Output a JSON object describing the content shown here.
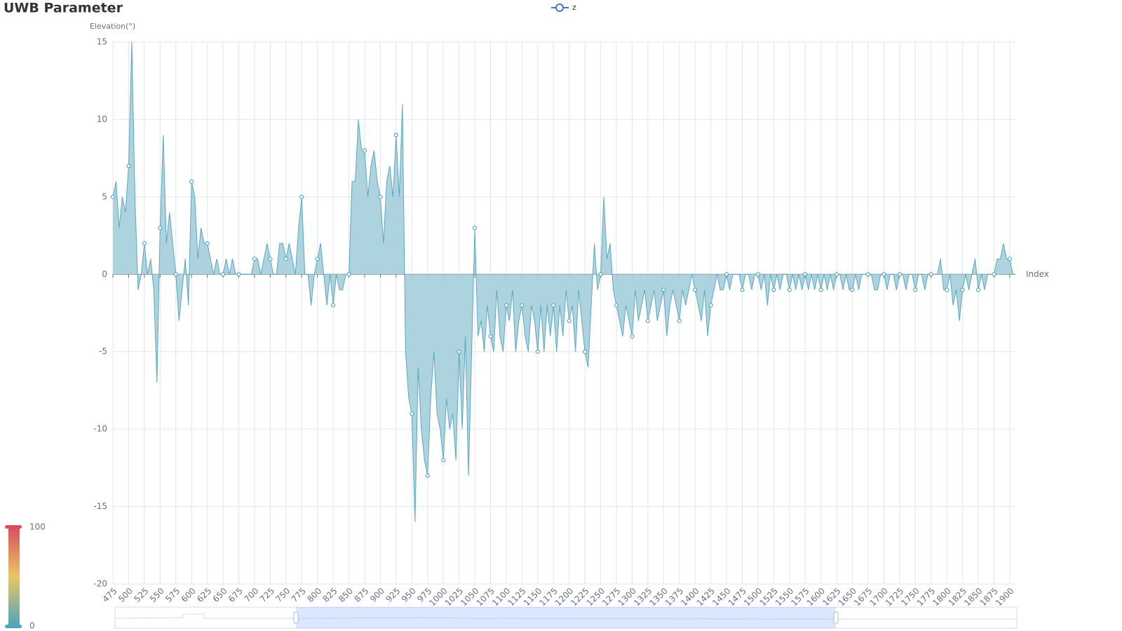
{
  "chart_data": {
    "type": "area",
    "title": "UWB Parameter",
    "y_axis_label": "Elevation(°)",
    "x_axis_label": "Index",
    "grid": true,
    "visual_map": {
      "min": 0,
      "max": 100
    },
    "xlim": [
      475,
      1909
    ],
    "xticks": [
      475,
      500,
      525,
      550,
      575,
      600,
      625,
      650,
      675,
      700,
      725,
      750,
      775,
      800,
      825,
      850,
      875,
      900,
      925,
      950,
      975,
      1000,
      1025,
      1050,
      1075,
      1100,
      1125,
      1150,
      1175,
      1200,
      1225,
      1250,
      1275,
      1300,
      1325,
      1350,
      1375,
      1400,
      1425,
      1450,
      1475,
      1500,
      1525,
      1550,
      1575,
      1600,
      1625,
      1650,
      1675,
      1700,
      1725,
      1750,
      1775,
      1800,
      1825,
      1850,
      1875,
      1900
    ],
    "ylim": [
      -20,
      15
    ],
    "yticks": [
      15,
      10,
      5,
      0,
      -5,
      -10,
      -15,
      -20
    ],
    "x": [
      475,
      480,
      485,
      490,
      495,
      500,
      505,
      510,
      515,
      520,
      525,
      530,
      535,
      540,
      545,
      550,
      555,
      560,
      565,
      570,
      575,
      580,
      585,
      590,
      595,
      600,
      605,
      610,
      615,
      620,
      625,
      630,
      635,
      640,
      645,
      650,
      655,
      660,
      665,
      670,
      675,
      680,
      685,
      690,
      695,
      700,
      705,
      710,
      715,
      720,
      725,
      730,
      735,
      740,
      745,
      750,
      755,
      760,
      765,
      770,
      775,
      780,
      785,
      790,
      795,
      800,
      805,
      810,
      815,
      820,
      825,
      830,
      835,
      840,
      845,
      850,
      855,
      860,
      865,
      870,
      875,
      880,
      885,
      890,
      895,
      900,
      905,
      910,
      915,
      920,
      925,
      930,
      935,
      940,
      945,
      950,
      955,
      960,
      965,
      970,
      975,
      980,
      985,
      990,
      995,
      1000,
      1005,
      1010,
      1015,
      1020,
      1025,
      1030,
      1035,
      1040,
      1045,
      1050,
      1055,
      1060,
      1065,
      1070,
      1075,
      1080,
      1085,
      1090,
      1095,
      1100,
      1105,
      1110,
      1115,
      1120,
      1125,
      1130,
      1135,
      1140,
      1145,
      1150,
      1155,
      1160,
      1165,
      1170,
      1175,
      1180,
      1185,
      1190,
      1195,
      1200,
      1205,
      1210,
      1215,
      1220,
      1225,
      1230,
      1235,
      1240,
      1245,
      1250,
      1255,
      1260,
      1265,
      1270,
      1275,
      1280,
      1285,
      1290,
      1295,
      1300,
      1305,
      1310,
      1315,
      1320,
      1325,
      1330,
      1335,
      1340,
      1345,
      1350,
      1355,
      1360,
      1365,
      1370,
      1375,
      1380,
      1385,
      1390,
      1395,
      1400,
      1405,
      1410,
      1415,
      1420,
      1425,
      1430,
      1435,
      1440,
      1445,
      1450,
      1455,
      1460,
      1465,
      1470,
      1475,
      1480,
      1485,
      1490,
      1495,
      1500,
      1505,
      1510,
      1515,
      1520,
      1525,
      1530,
      1535,
      1540,
      1545,
      1550,
      1555,
      1560,
      1565,
      1570,
      1575,
      1580,
      1585,
      1590,
      1595,
      1600,
      1605,
      1610,
      1615,
      1620,
      1625,
      1630,
      1635,
      1640,
      1645,
      1650,
      1655,
      1660,
      1665,
      1670,
      1675,
      1680,
      1685,
      1690,
      1695,
      1700,
      1705,
      1710,
      1715,
      1720,
      1725,
      1730,
      1735,
      1740,
      1745,
      1750,
      1755,
      1760,
      1765,
      1770,
      1775,
      1780,
      1785,
      1790,
      1795,
      1800,
      1805,
      1810,
      1815,
      1820,
      1825,
      1830,
      1835,
      1840,
      1845,
      1850,
      1855,
      1860,
      1865,
      1870,
      1875,
      1880,
      1885,
      1890,
      1895,
      1900,
      1905
    ],
    "series": [
      {
        "name": "z",
        "color": "#5ba8c0",
        "fill": "#a9d1dc",
        "values": [
          5,
          6,
          3,
          5,
          4,
          7,
          15,
          5,
          -1,
          0,
          2,
          0,
          1,
          -1,
          -7,
          3,
          9,
          2,
          4,
          2,
          0,
          -3,
          -1,
          1,
          -2,
          6,
          5,
          1,
          3,
          2,
          2,
          1,
          0,
          1,
          0,
          0,
          1,
          0,
          1,
          0,
          0,
          0,
          0,
          0,
          0,
          1,
          1,
          0,
          1,
          2,
          1,
          0,
          0,
          2,
          2,
          1,
          2,
          1,
          0,
          3,
          5,
          0,
          0,
          -2,
          0,
          1,
          2,
          0,
          -2,
          0,
          -2,
          0,
          -1,
          -1,
          0,
          0,
          6,
          6,
          10,
          8,
          8,
          5,
          7,
          8,
          6,
          5,
          2,
          6,
          7,
          5,
          9,
          5,
          11,
          -5,
          -8,
          -9,
          -16,
          -6,
          -10,
          -12,
          -13,
          -8,
          -5,
          -9,
          -10,
          -12,
          -8,
          -10,
          -9,
          -12,
          -5,
          -10,
          -4,
          -13,
          -5,
          3,
          -4,
          -3,
          -5,
          -2,
          -4,
          -5,
          -1,
          -4,
          -5,
          -2,
          -3,
          -1,
          -5,
          -3,
          -2,
          -4,
          -5,
          -2,
          -3,
          -5,
          -2,
          -5,
          -2,
          -4,
          -2,
          -5,
          -2,
          -4,
          -1,
          -3,
          -2,
          -5,
          -1,
          -3,
          -5,
          -6,
          -2,
          2,
          -1,
          0,
          5,
          1,
          2,
          -1,
          -2,
          -3,
          -4,
          -2,
          -3,
          -4,
          -1,
          -3,
          -2,
          -1,
          -3,
          -2,
          -1,
          -3,
          -2,
          -1,
          -4,
          -2,
          -1,
          -2,
          -3,
          -1,
          -2,
          -1,
          0,
          -1,
          -2,
          -3,
          -1,
          -4,
          -2,
          -1,
          0,
          -1,
          -1,
          0,
          -1,
          0,
          0,
          0,
          -1,
          0,
          0,
          -1,
          0,
          0,
          -1,
          0,
          -2,
          0,
          -1,
          0,
          -1,
          0,
          0,
          -1,
          0,
          -1,
          0,
          -1,
          0,
          -1,
          0,
          -1,
          0,
          -1,
          0,
          -1,
          0,
          -1,
          0,
          0,
          -1,
          0,
          -1,
          -1,
          0,
          -1,
          0,
          0,
          0,
          0,
          -1,
          -1,
          0,
          0,
          -1,
          0,
          0,
          -1,
          0,
          0,
          -1,
          0,
          0,
          -1,
          0,
          0,
          -1,
          0,
          0,
          0,
          0,
          1,
          -1,
          -1,
          0,
          -2,
          -1,
          -3,
          -1,
          0,
          -1,
          0,
          1,
          -1,
          0,
          -1,
          0,
          0,
          0,
          1,
          1,
          2,
          1,
          1,
          0
        ]
      }
    ]
  }
}
